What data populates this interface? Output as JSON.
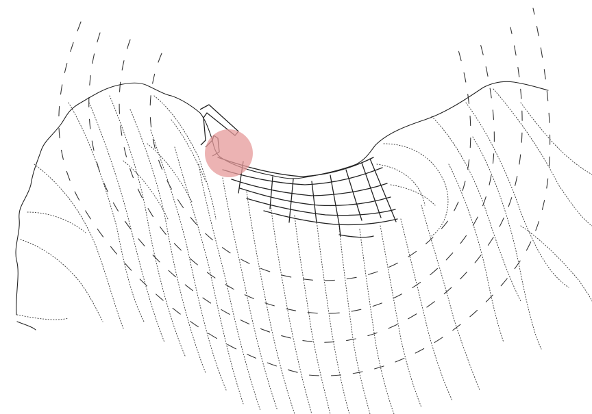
{
  "colors": {
    "background": "#ffffff",
    "line": "#222222",
    "highlight": "#e59a9a"
  },
  "marker": {
    "icon": "circle-highlight"
  }
}
